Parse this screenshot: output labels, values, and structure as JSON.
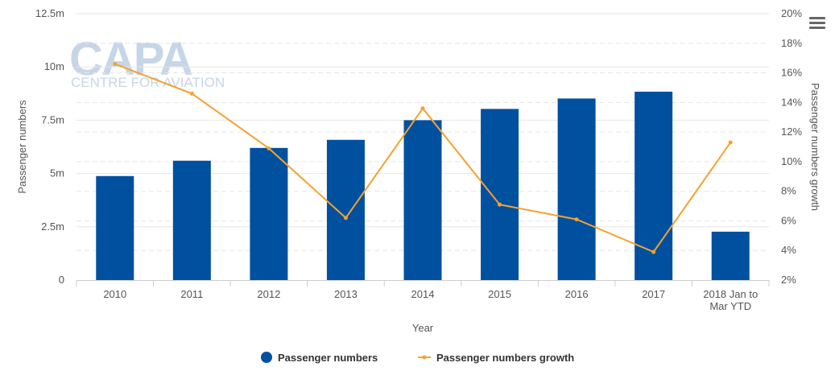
{
  "watermark": {
    "logo": "CAPA",
    "tagline": "CENTRE FOR AVIATION"
  },
  "menu_icon": "hamburger-menu-icon",
  "chart_data": {
    "type": "bar",
    "categories": [
      "2010",
      "2011",
      "2012",
      "2013",
      "2014",
      "2015",
      "2016",
      "2017",
      "2018 Jan to Mar YTD"
    ],
    "category_lines": [
      [
        "2010"
      ],
      [
        "2011"
      ],
      [
        "2012"
      ],
      [
        "2013"
      ],
      [
        "2014"
      ],
      [
        "2015"
      ],
      [
        "2016"
      ],
      [
        "2017"
      ],
      [
        "2018 Jan to",
        "Mar YTD"
      ]
    ],
    "xlabel": "Year",
    "series": [
      {
        "name": "Passenger numbers",
        "type": "bar",
        "axis": "left",
        "color": "#0050a0",
        "values": [
          4880000,
          5600000,
          6200000,
          6580000,
          7500000,
          8030000,
          8520000,
          8840000,
          2270000
        ]
      },
      {
        "name": "Passenger numbers growth",
        "type": "line",
        "axis": "right",
        "color": "#f5a22e",
        "values": [
          16.6,
          14.6,
          10.9,
          6.2,
          13.6,
          7.1,
          6.1,
          3.9,
          11.3
        ]
      }
    ],
    "y_left": {
      "label": "Passenger numbers",
      "lim": [
        0,
        12500000
      ],
      "ticks": [
        0,
        2500000,
        5000000,
        7500000,
        10000000,
        12500000
      ],
      "tick_labels": [
        "0",
        "2.5m",
        "5m",
        "7.5m",
        "10m",
        "12.5m"
      ]
    },
    "y_right": {
      "label": "Passenger numbers growth",
      "lim": [
        2,
        20
      ],
      "ticks": [
        2,
        4,
        6,
        8,
        10,
        12,
        14,
        16,
        18,
        20
      ],
      "tick_labels": [
        "2%",
        "4%",
        "6%",
        "8%",
        "10%",
        "12%",
        "14%",
        "16%",
        "18%",
        "20%"
      ]
    },
    "grid": true,
    "legend": {
      "placement": "bottom-center"
    }
  }
}
